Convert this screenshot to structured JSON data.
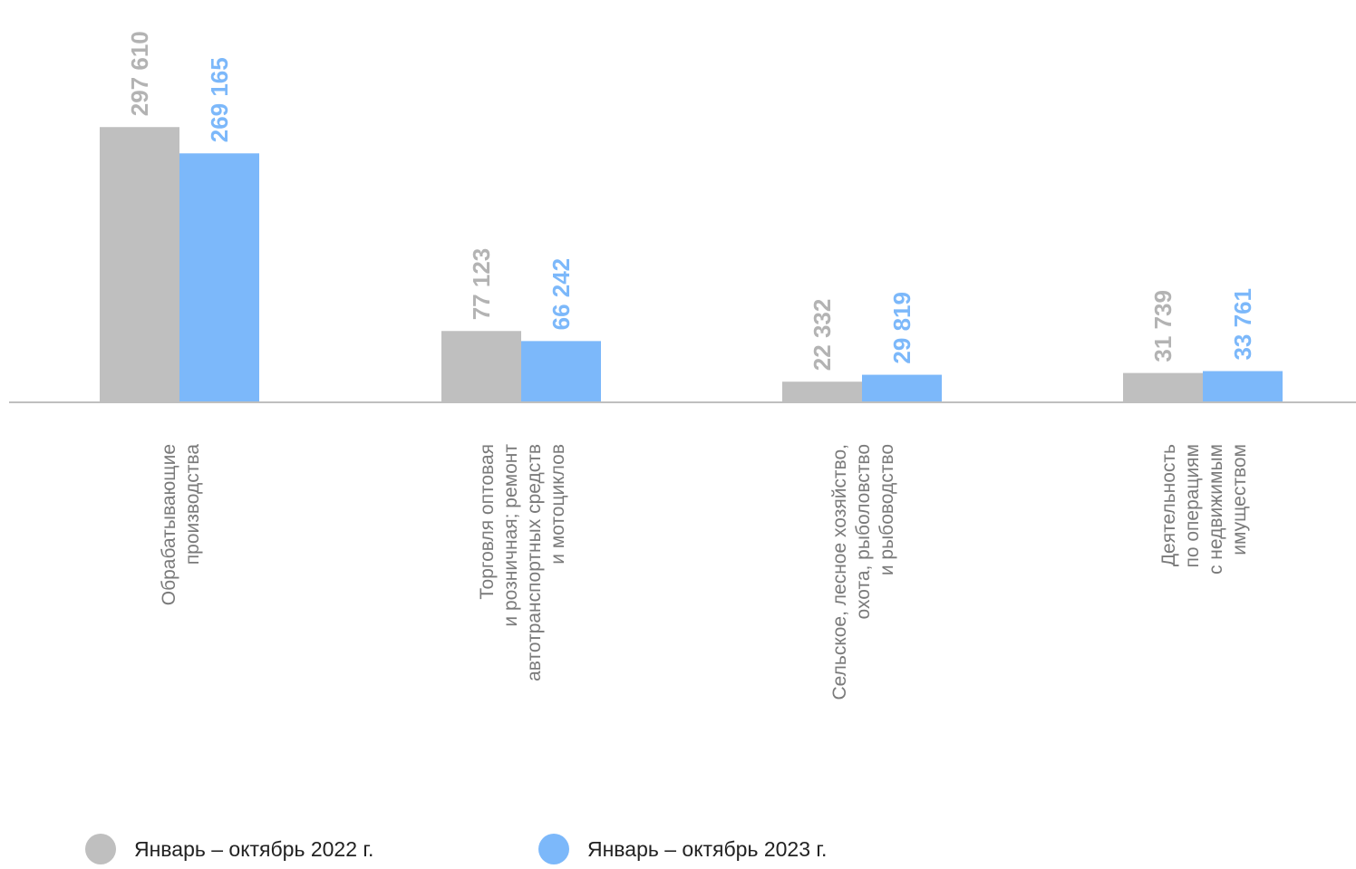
{
  "chart_data": {
    "type": "bar",
    "categories": [
      [
        "Обрабатывающие",
        "производства"
      ],
      [
        "Торговля оптовая",
        "и розничная; ремонт",
        "автотранспортных средств",
        "и мотоциклов"
      ],
      [
        "Сельское, лесное хозяйство,",
        "охота, рыболовство",
        "и рыбоводство"
      ],
      [
        "Деятельность",
        "по операциям",
        "с недвижимым",
        "имуществом"
      ]
    ],
    "series": [
      {
        "name": "Январь – октябрь 2022 г.",
        "color": "#bfbfbf",
        "values": [
          297610,
          77123,
          22332,
          31739
        ],
        "labels": [
          "297 610",
          "77 123",
          "22 332",
          "31 739"
        ]
      },
      {
        "name": "Январь – октябрь 2023 г.",
        "color": "#7cb8fa",
        "values": [
          269165,
          66242,
          29819,
          33761
        ],
        "labels": [
          "269 165",
          "66 242",
          "29 819",
          "33 761"
        ]
      }
    ],
    "ylim": [
      0,
      435000
    ],
    "grid": false,
    "legend_position": "bottom"
  }
}
